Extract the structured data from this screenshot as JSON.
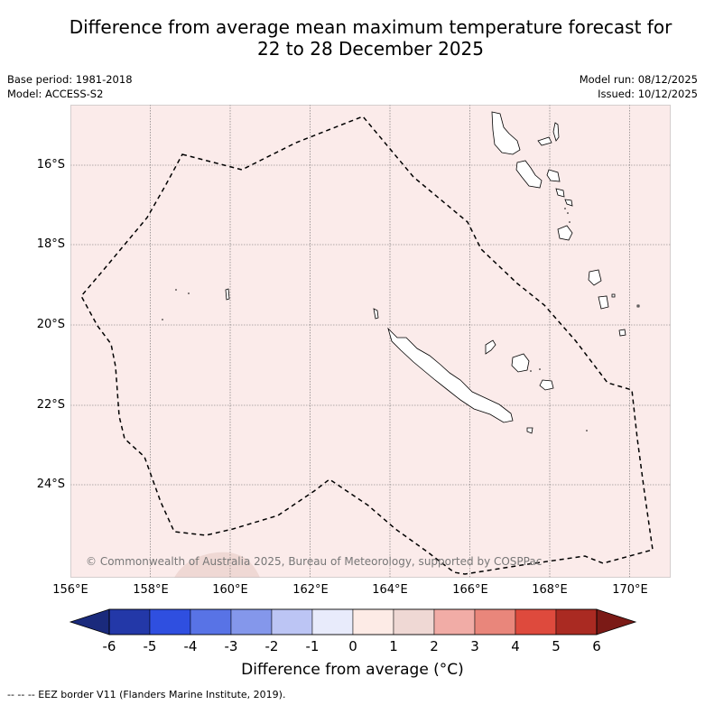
{
  "header": {
    "title_line1": "Difference from average mean maximum temperature forecast for",
    "title_line2": "22 to 28 December 2025",
    "base_period": "Base period: 1981-2018",
    "model": "Model: ACCESS-S2",
    "model_run": "Model run: 08/12/2025",
    "issued": "Issued: 10/12/2025"
  },
  "map": {
    "background_color": "#fbebea",
    "lat_ticks": [
      "16°S",
      "18°S",
      "20°S",
      "22°S",
      "24°S"
    ],
    "lat_values": [
      -16,
      -18,
      -20,
      -22,
      -24
    ],
    "lon_ticks": [
      "156°E",
      "158°E",
      "160°E",
      "162°E",
      "164°E",
      "166°E",
      "168°E",
      "170°E"
    ],
    "lon_values": [
      156,
      158,
      160,
      162,
      164,
      166,
      168,
      170
    ],
    "lon_range": [
      156,
      171
    ],
    "lat_range": [
      -26.3,
      -14.5
    ],
    "copyright": "© Commonwealth of Australia 2025, Bureau of Meteorology, supported by COSPPac"
  },
  "colorbar": {
    "labels": [
      "-6",
      "-5",
      "-4",
      "-3",
      "-2",
      "-1",
      "0",
      "1",
      "2",
      "3",
      "4",
      "5",
      "6"
    ],
    "colors": [
      "#2338a8",
      "#2f4fe0",
      "#5873e6",
      "#8497eb",
      "#bcc5f4",
      "#e8ebfb",
      "#fdebe6",
      "#efd8d4",
      "#f1aca6",
      "#e9867b",
      "#de4a3d",
      "#aa2a22"
    ],
    "under_color": "#1a2a7c",
    "over_color": "#7b1a16",
    "title": "Difference from average (°C)"
  },
  "footer": {
    "legend": "--  --  -- EEZ border V11 (Flanders Marine Institute, 2019)."
  }
}
